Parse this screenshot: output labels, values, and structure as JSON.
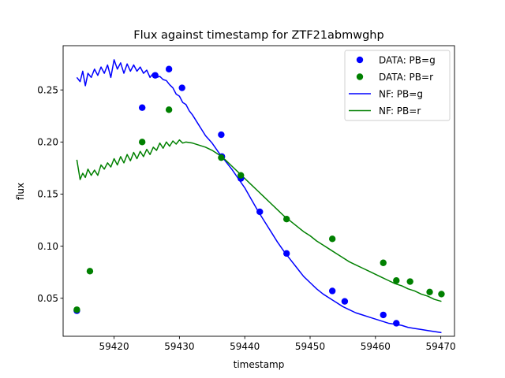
{
  "chart_data": {
    "type": "scatter",
    "title": "Flux against timestamp for ZTF21abmwghp",
    "xlabel": "timestamp",
    "ylabel": "flux",
    "xlim": [
      59412.2,
      59472.1
    ],
    "ylim": [
      0.0135,
      0.2925
    ],
    "x_ticks": [
      59420,
      59430,
      59440,
      59450,
      59460,
      59470
    ],
    "y_ticks": [
      0.05,
      0.1,
      0.15,
      0.2,
      0.25
    ],
    "y_tick_labels": [
      "0.05",
      "0.10",
      "0.15",
      "0.20",
      "0.25"
    ],
    "grid": false,
    "legend_position": "top-right",
    "series": [
      {
        "name": "DATA: PB=g",
        "kind": "scatter",
        "color": "#0000ff",
        "points": [
          [
            59414.3,
            0.038
          ],
          [
            59424.3,
            0.233
          ],
          [
            59426.3,
            0.264
          ],
          [
            59428.4,
            0.27
          ],
          [
            59430.4,
            0.252
          ],
          [
            59436.4,
            0.207
          ],
          [
            59436.5,
            0.186
          ],
          [
            59439.4,
            0.165
          ],
          [
            59442.3,
            0.133
          ],
          [
            59446.4,
            0.093
          ],
          [
            59453.4,
            0.057
          ],
          [
            59455.3,
            0.047
          ],
          [
            59461.2,
            0.034
          ],
          [
            59463.2,
            0.026
          ]
        ]
      },
      {
        "name": "DATA: PB=r",
        "kind": "scatter",
        "color": "#008000",
        "points": [
          [
            59414.3,
            0.039
          ],
          [
            59416.3,
            0.076
          ],
          [
            59424.3,
            0.2
          ],
          [
            59428.4,
            0.231
          ],
          [
            59436.4,
            0.185
          ],
          [
            59439.4,
            0.168
          ],
          [
            59446.4,
            0.126
          ],
          [
            59453.4,
            0.107
          ],
          [
            59461.2,
            0.084
          ],
          [
            59463.2,
            0.067
          ],
          [
            59465.3,
            0.066
          ],
          [
            59468.3,
            0.056
          ],
          [
            59470.1,
            0.054
          ]
        ]
      },
      {
        "name": "NF: PB=g",
        "kind": "line",
        "color": "#0000ff",
        "points": [
          [
            59414.3,
            0.262
          ],
          [
            59414.8,
            0.258
          ],
          [
            59415.2,
            0.268
          ],
          [
            59415.6,
            0.254
          ],
          [
            59416.0,
            0.266
          ],
          [
            59416.5,
            0.262
          ],
          [
            59417.0,
            0.27
          ],
          [
            59417.5,
            0.264
          ],
          [
            59418.0,
            0.272
          ],
          [
            59418.5,
            0.266
          ],
          [
            59419.0,
            0.274
          ],
          [
            59419.5,
            0.262
          ],
          [
            59420.0,
            0.279
          ],
          [
            59420.5,
            0.27
          ],
          [
            59421.0,
            0.276
          ],
          [
            59421.5,
            0.266
          ],
          [
            59422.0,
            0.275
          ],
          [
            59422.5,
            0.268
          ],
          [
            59423.0,
            0.274
          ],
          [
            59423.5,
            0.268
          ],
          [
            59424.0,
            0.272
          ],
          [
            59424.5,
            0.266
          ],
          [
            59425.0,
            0.269
          ],
          [
            59425.5,
            0.262
          ],
          [
            59426.0,
            0.266
          ],
          [
            59426.5,
            0.262
          ],
          [
            59427.0,
            0.263
          ],
          [
            59427.5,
            0.26
          ],
          [
            59428.0,
            0.259
          ],
          [
            59428.5,
            0.255
          ],
          [
            59429.0,
            0.252
          ],
          [
            59429.5,
            0.246
          ],
          [
            59430.0,
            0.244
          ],
          [
            59430.5,
            0.238
          ],
          [
            59431.0,
            0.236
          ],
          [
            59431.5,
            0.23
          ],
          [
            59432.0,
            0.226
          ],
          [
            59433.0,
            0.216
          ],
          [
            59434.0,
            0.206
          ],
          [
            59435.0,
            0.199
          ],
          [
            59436.0,
            0.19
          ],
          [
            59437.0,
            0.182
          ],
          [
            59438.0,
            0.174
          ],
          [
            59439.0,
            0.165
          ],
          [
            59440.0,
            0.156
          ],
          [
            59441.0,
            0.145
          ],
          [
            59442.0,
            0.134
          ],
          [
            59443.0,
            0.124
          ],
          [
            59444.0,
            0.114
          ],
          [
            59445.0,
            0.104
          ],
          [
            59446.0,
            0.095
          ],
          [
            59447.0,
            0.087
          ],
          [
            59448.0,
            0.079
          ],
          [
            59449.0,
            0.071
          ],
          [
            59450.0,
            0.065
          ],
          [
            59451.0,
            0.059
          ],
          [
            59452.0,
            0.054
          ],
          [
            59453.0,
            0.05
          ],
          [
            59454.0,
            0.046
          ],
          [
            59455.0,
            0.042
          ],
          [
            59456.0,
            0.039
          ],
          [
            59457.0,
            0.036
          ],
          [
            59458.0,
            0.034
          ],
          [
            59459.0,
            0.032
          ],
          [
            59460.0,
            0.03
          ],
          [
            59461.0,
            0.028
          ],
          [
            59462.0,
            0.026
          ],
          [
            59463.0,
            0.025
          ],
          [
            59464.0,
            0.024
          ],
          [
            59465.0,
            0.022
          ],
          [
            59466.0,
            0.021
          ],
          [
            59467.0,
            0.02
          ],
          [
            59468.0,
            0.019
          ],
          [
            59469.0,
            0.018
          ],
          [
            59470.1,
            0.017
          ]
        ]
      },
      {
        "name": "NF: PB=r",
        "kind": "line",
        "color": "#008000",
        "points": [
          [
            59414.3,
            0.183
          ],
          [
            59414.8,
            0.164
          ],
          [
            59415.2,
            0.17
          ],
          [
            59415.6,
            0.166
          ],
          [
            59416.0,
            0.174
          ],
          [
            59416.5,
            0.168
          ],
          [
            59417.0,
            0.173
          ],
          [
            59417.5,
            0.168
          ],
          [
            59418.0,
            0.178
          ],
          [
            59418.5,
            0.174
          ],
          [
            59419.0,
            0.18
          ],
          [
            59419.5,
            0.176
          ],
          [
            59420.0,
            0.184
          ],
          [
            59420.5,
            0.178
          ],
          [
            59421.0,
            0.186
          ],
          [
            59421.5,
            0.18
          ],
          [
            59422.0,
            0.188
          ],
          [
            59422.5,
            0.182
          ],
          [
            59423.0,
            0.19
          ],
          [
            59423.5,
            0.184
          ],
          [
            59424.0,
            0.191
          ],
          [
            59424.5,
            0.186
          ],
          [
            59425.0,
            0.193
          ],
          [
            59425.5,
            0.188
          ],
          [
            59426.0,
            0.195
          ],
          [
            59426.5,
            0.192
          ],
          [
            59427.0,
            0.199
          ],
          [
            59427.5,
            0.194
          ],
          [
            59428.0,
            0.2
          ],
          [
            59428.5,
            0.196
          ],
          [
            59429.0,
            0.201
          ],
          [
            59429.5,
            0.198
          ],
          [
            59430.0,
            0.202
          ],
          [
            59430.5,
            0.199
          ],
          [
            59431.0,
            0.2
          ],
          [
            59432.0,
            0.199
          ],
          [
            59433.0,
            0.197
          ],
          [
            59434.0,
            0.195
          ],
          [
            59435.0,
            0.192
          ],
          [
            59436.0,
            0.188
          ],
          [
            59437.0,
            0.183
          ],
          [
            59438.0,
            0.177
          ],
          [
            59439.0,
            0.171
          ],
          [
            59440.0,
            0.165
          ],
          [
            59441.0,
            0.159
          ],
          [
            59442.0,
            0.153
          ],
          [
            59443.0,
            0.147
          ],
          [
            59444.0,
            0.141
          ],
          [
            59445.0,
            0.135
          ],
          [
            59446.0,
            0.129
          ],
          [
            59447.0,
            0.124
          ],
          [
            59448.0,
            0.119
          ],
          [
            59449.0,
            0.114
          ],
          [
            59450.0,
            0.11
          ],
          [
            59451.0,
            0.105
          ],
          [
            59452.0,
            0.101
          ],
          [
            59453.0,
            0.097
          ],
          [
            59454.0,
            0.093
          ],
          [
            59455.0,
            0.089
          ],
          [
            59456.0,
            0.085
          ],
          [
            59457.0,
            0.082
          ],
          [
            59458.0,
            0.079
          ],
          [
            59459.0,
            0.076
          ],
          [
            59460.0,
            0.073
          ],
          [
            59461.0,
            0.07
          ],
          [
            59462.0,
            0.067
          ],
          [
            59463.0,
            0.064
          ],
          [
            59464.0,
            0.062
          ],
          [
            59465.0,
            0.059
          ],
          [
            59466.0,
            0.057
          ],
          [
            59467.0,
            0.054
          ],
          [
            59468.0,
            0.052
          ],
          [
            59469.0,
            0.049
          ],
          [
            59470.1,
            0.047
          ]
        ]
      }
    ]
  }
}
